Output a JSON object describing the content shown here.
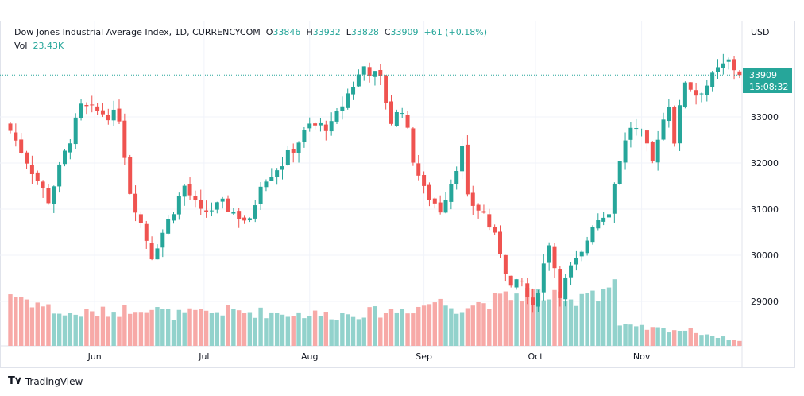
{
  "legend": {
    "symbol": "Dow Jones Industrial Average Index, 1D, CURRENCYCOM",
    "o_label": "O",
    "o": "33846",
    "h_label": "H",
    "h": "33932",
    "l_label": "L",
    "l": "33828",
    "c_label": "C",
    "c": "33909",
    "change": "+61 (+0.18%)",
    "vol_label": "Vol",
    "vol": "23.43K"
  },
  "price_label": {
    "price": "33909",
    "countdown": "15:08:32"
  },
  "brand": "TradingView",
  "colors": {
    "up": "#26a69a",
    "down": "#ef5350",
    "up_vol": "#92d2cc",
    "down_vol": "#f7a9a7"
  },
  "chart_data": {
    "type": "candlestick",
    "currency": "USD",
    "bars": 135,
    "close_anchors": [
      [
        0,
        32700
      ],
      [
        7,
        31200
      ],
      [
        13,
        33200
      ],
      [
        20,
        33000
      ],
      [
        22,
        31400
      ],
      [
        26,
        30000
      ],
      [
        32,
        31500
      ],
      [
        35,
        30900
      ],
      [
        39,
        31100
      ],
      [
        44,
        30700
      ],
      [
        46,
        31600
      ],
      [
        50,
        32000
      ],
      [
        55,
        32800
      ],
      [
        59,
        32800
      ],
      [
        62,
        33500
      ],
      [
        65,
        34100
      ],
      [
        68,
        33800
      ],
      [
        70,
        32900
      ],
      [
        72,
        33200
      ],
      [
        74,
        32100
      ],
      [
        76,
        31400
      ],
      [
        79,
        31000
      ],
      [
        81,
        31600
      ],
      [
        83,
        32300
      ],
      [
        84,
        31200
      ],
      [
        87,
        30900
      ],
      [
        90,
        30100
      ],
      [
        92,
        29300
      ],
      [
        94,
        29400
      ],
      [
        96,
        28800
      ],
      [
        99,
        30300
      ],
      [
        101,
        29200
      ],
      [
        103,
        29700
      ],
      [
        105,
        30000
      ],
      [
        107,
        30700
      ],
      [
        110,
        31000
      ],
      [
        112,
        32100
      ],
      [
        114,
        32800
      ],
      [
        116,
        32600
      ],
      [
        118,
        32000
      ],
      [
        119,
        32600
      ],
      [
        121,
        33300
      ],
      [
        122,
        32500
      ],
      [
        124,
        33800
      ],
      [
        126,
        33500
      ],
      [
        128,
        33700
      ],
      [
        130,
        34000
      ],
      [
        132,
        34200
      ],
      [
        134,
        33909
      ]
    ],
    "volume_anchors": [
      [
        0,
        68
      ],
      [
        5,
        55
      ],
      [
        10,
        40
      ],
      [
        20,
        45
      ],
      [
        24,
        52
      ],
      [
        30,
        40
      ],
      [
        40,
        45
      ],
      [
        50,
        42
      ],
      [
        60,
        40
      ],
      [
        70,
        45
      ],
      [
        75,
        50
      ],
      [
        78,
        58
      ],
      [
        82,
        50
      ],
      [
        90,
        60
      ],
      [
        95,
        70
      ],
      [
        100,
        62
      ],
      [
        103,
        55
      ],
      [
        106,
        75
      ],
      [
        108,
        68
      ],
      [
        110,
        78
      ],
      [
        111,
        85
      ],
      [
        112,
        25
      ],
      [
        118,
        22
      ],
      [
        125,
        20
      ],
      [
        130,
        12
      ],
      [
        134,
        6
      ]
    ],
    "y_ticks": [
      29000,
      30000,
      31000,
      32000,
      33000
    ],
    "ylim": [
      28500,
      34700
    ],
    "x_ticks": [
      {
        "label": "Jun",
        "index": 15.5
      },
      {
        "label": "Jul",
        "index": 35.6
      },
      {
        "label": "Aug",
        "index": 55
      },
      {
        "label": "Sep",
        "index": 76
      },
      {
        "label": "Oct",
        "index": 96.5
      },
      {
        "label": "Nov",
        "index": 116
      }
    ]
  }
}
